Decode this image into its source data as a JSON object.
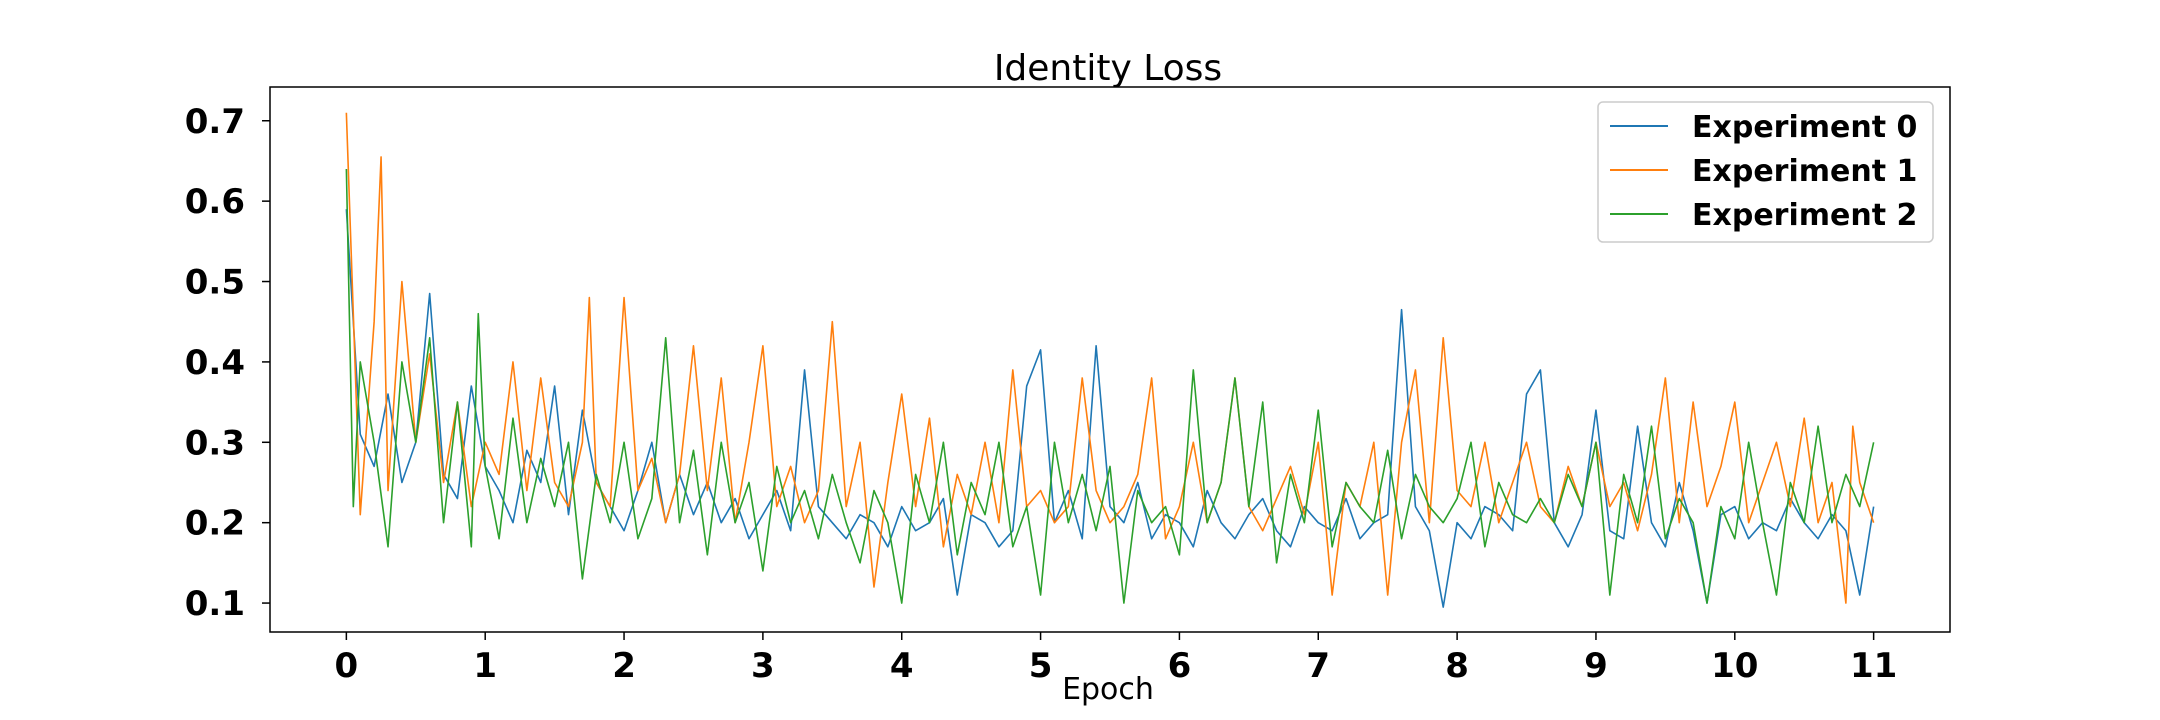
{
  "chart_data": {
    "type": "line",
    "title": "Identity Loss",
    "xlabel": "Epoch",
    "ylabel": "",
    "xlim": [
      -0.55,
      11.55
    ],
    "ylim": [
      0.064,
      0.742
    ],
    "xticks": [
      0,
      1,
      2,
      3,
      4,
      5,
      6,
      7,
      8,
      9,
      10,
      11
    ],
    "yticks": [
      0.1,
      0.2,
      0.3,
      0.4,
      0.5,
      0.6,
      0.7
    ],
    "xtick_labels": [
      "0",
      "1",
      "2",
      "3",
      "4",
      "5",
      "6",
      "7",
      "8",
      "9",
      "10",
      "11"
    ],
    "ytick_labels": [
      "0.1",
      "0.2",
      "0.3",
      "0.4",
      "0.5",
      "0.6",
      "0.7"
    ],
    "grid": false,
    "legend_position": "top-right",
    "series": [
      {
        "name": "Experiment 0",
        "color": "#1f77b4",
        "x": [
          0,
          0.1,
          0.2,
          0.3,
          0.4,
          0.5,
          0.6,
          0.7,
          0.8,
          0.9,
          1,
          1.1,
          1.2,
          1.3,
          1.4,
          1.5,
          1.6,
          1.7,
          1.8,
          1.9,
          2,
          2.1,
          2.2,
          2.3,
          2.4,
          2.5,
          2.6,
          2.7,
          2.8,
          2.9,
          3,
          3.1,
          3.2,
          3.3,
          3.4,
          3.5,
          3.6,
          3.7,
          3.8,
          3.9,
          4,
          4.1,
          4.2,
          4.3,
          4.4,
          4.5,
          4.6,
          4.7,
          4.8,
          4.9,
          5,
          5.1,
          5.2,
          5.3,
          5.4,
          5.5,
          5.6,
          5.7,
          5.8,
          5.9,
          6,
          6.1,
          6.2,
          6.3,
          6.4,
          6.5,
          6.6,
          6.7,
          6.8,
          6.9,
          7,
          7.1,
          7.2,
          7.3,
          7.4,
          7.5,
          7.6,
          7.7,
          7.8,
          7.9,
          8,
          8.1,
          8.2,
          8.3,
          8.4,
          8.5,
          8.6,
          8.7,
          8.8,
          8.9,
          9,
          9.1,
          9.2,
          9.3,
          9.4,
          9.5,
          9.6,
          9.7,
          9.8,
          9.9,
          10,
          10.1,
          10.2,
          10.3,
          10.4,
          10.5,
          10.6,
          10.7,
          10.8,
          10.9,
          11
        ],
        "values": [
          0.59,
          0.31,
          0.27,
          0.36,
          0.25,
          0.3,
          0.485,
          0.26,
          0.23,
          0.37,
          0.27,
          0.24,
          0.2,
          0.29,
          0.25,
          0.37,
          0.21,
          0.34,
          0.25,
          0.22,
          0.19,
          0.24,
          0.3,
          0.2,
          0.26,
          0.21,
          0.25,
          0.2,
          0.23,
          0.18,
          0.21,
          0.24,
          0.19,
          0.39,
          0.22,
          0.2,
          0.18,
          0.21,
          0.2,
          0.17,
          0.22,
          0.19,
          0.2,
          0.23,
          0.11,
          0.21,
          0.2,
          0.17,
          0.19,
          0.37,
          0.415,
          0.2,
          0.24,
          0.18,
          0.42,
          0.22,
          0.2,
          0.25,
          0.18,
          0.21,
          0.2,
          0.17,
          0.24,
          0.2,
          0.18,
          0.21,
          0.23,
          0.19,
          0.17,
          0.22,
          0.2,
          0.19,
          0.23,
          0.18,
          0.2,
          0.21,
          0.465,
          0.22,
          0.19,
          0.095,
          0.2,
          0.18,
          0.22,
          0.21,
          0.19,
          0.36,
          0.39,
          0.2,
          0.17,
          0.21,
          0.34,
          0.19,
          0.18,
          0.32,
          0.2,
          0.17,
          0.25,
          0.19,
          0.1,
          0.21,
          0.22,
          0.18,
          0.2,
          0.19,
          0.23,
          0.2,
          0.18,
          0.21,
          0.19,
          0.11,
          0.22
        ]
      },
      {
        "name": "Experiment 1",
        "color": "#ff7f0e",
        "x": [
          0,
          0.1,
          0.2,
          0.25,
          0.3,
          0.4,
          0.5,
          0.6,
          0.7,
          0.8,
          0.9,
          1,
          1.1,
          1.2,
          1.3,
          1.4,
          1.5,
          1.6,
          1.7,
          1.75,
          1.8,
          1.9,
          2,
          2.1,
          2.2,
          2.3,
          2.4,
          2.5,
          2.6,
          2.7,
          2.8,
          2.9,
          3,
          3.1,
          3.2,
          3.3,
          3.4,
          3.5,
          3.6,
          3.7,
          3.8,
          3.9,
          4,
          4.1,
          4.2,
          4.3,
          4.4,
          4.5,
          4.6,
          4.7,
          4.8,
          4.9,
          5,
          5.1,
          5.2,
          5.3,
          5.4,
          5.5,
          5.6,
          5.7,
          5.8,
          5.9,
          6,
          6.1,
          6.2,
          6.3,
          6.4,
          6.5,
          6.6,
          6.7,
          6.8,
          6.9,
          7,
          7.1,
          7.2,
          7.3,
          7.4,
          7.5,
          7.6,
          7.7,
          7.8,
          7.9,
          8,
          8.1,
          8.2,
          8.3,
          8.4,
          8.5,
          8.6,
          8.7,
          8.8,
          8.9,
          9,
          9.1,
          9.2,
          9.3,
          9.4,
          9.5,
          9.6,
          9.7,
          9.8,
          9.9,
          10,
          10.1,
          10.2,
          10.3,
          10.4,
          10.5,
          10.6,
          10.7,
          10.8,
          10.85,
          10.9,
          11
        ],
        "values": [
          0.71,
          0.21,
          0.45,
          0.655,
          0.24,
          0.5,
          0.3,
          0.41,
          0.25,
          0.35,
          0.22,
          0.3,
          0.26,
          0.4,
          0.24,
          0.38,
          0.25,
          0.22,
          0.3,
          0.48,
          0.25,
          0.22,
          0.48,
          0.24,
          0.28,
          0.2,
          0.26,
          0.42,
          0.24,
          0.38,
          0.2,
          0.3,
          0.42,
          0.22,
          0.27,
          0.2,
          0.24,
          0.45,
          0.22,
          0.3,
          0.12,
          0.25,
          0.36,
          0.22,
          0.33,
          0.17,
          0.26,
          0.21,
          0.3,
          0.2,
          0.39,
          0.22,
          0.24,
          0.2,
          0.22,
          0.38,
          0.24,
          0.2,
          0.22,
          0.26,
          0.38,
          0.18,
          0.22,
          0.3,
          0.2,
          0.25,
          0.38,
          0.22,
          0.19,
          0.23,
          0.27,
          0.21,
          0.3,
          0.11,
          0.25,
          0.22,
          0.3,
          0.11,
          0.3,
          0.39,
          0.2,
          0.43,
          0.24,
          0.22,
          0.3,
          0.2,
          0.25,
          0.3,
          0.22,
          0.2,
          0.27,
          0.22,
          0.3,
          0.22,
          0.25,
          0.19,
          0.26,
          0.38,
          0.2,
          0.35,
          0.22,
          0.27,
          0.35,
          0.2,
          0.25,
          0.3,
          0.22,
          0.33,
          0.2,
          0.25,
          0.1,
          0.32,
          0.25,
          0.2
        ]
      },
      {
        "name": "Experiment 2",
        "color": "#2ca02c",
        "x": [
          0,
          0.05,
          0.1,
          0.2,
          0.3,
          0.4,
          0.5,
          0.6,
          0.7,
          0.8,
          0.9,
          0.95,
          1,
          1.1,
          1.2,
          1.3,
          1.4,
          1.5,
          1.6,
          1.7,
          1.8,
          1.9,
          2,
          2.1,
          2.2,
          2.3,
          2.4,
          2.5,
          2.6,
          2.7,
          2.8,
          2.9,
          3,
          3.1,
          3.2,
          3.3,
          3.4,
          3.5,
          3.6,
          3.7,
          3.8,
          3.9,
          4,
          4.1,
          4.2,
          4.3,
          4.4,
          4.5,
          4.6,
          4.7,
          4.8,
          4.9,
          5,
          5.1,
          5.2,
          5.3,
          5.4,
          5.5,
          5.6,
          5.7,
          5.8,
          5.9,
          6,
          6.1,
          6.2,
          6.3,
          6.4,
          6.5,
          6.6,
          6.7,
          6.8,
          6.9,
          7,
          7.1,
          7.2,
          7.3,
          7.4,
          7.5,
          7.6,
          7.7,
          7.8,
          7.9,
          8,
          8.1,
          8.2,
          8.3,
          8.4,
          8.5,
          8.6,
          8.7,
          8.8,
          8.9,
          9,
          9.1,
          9.2,
          9.3,
          9.4,
          9.5,
          9.6,
          9.7,
          9.8,
          9.9,
          10,
          10.1,
          10.2,
          10.3,
          10.4,
          10.5,
          10.6,
          10.7,
          10.8,
          10.9,
          11
        ],
        "values": [
          0.64,
          0.22,
          0.4,
          0.3,
          0.17,
          0.4,
          0.3,
          0.43,
          0.2,
          0.35,
          0.17,
          0.46,
          0.27,
          0.18,
          0.33,
          0.2,
          0.28,
          0.22,
          0.3,
          0.13,
          0.26,
          0.2,
          0.3,
          0.18,
          0.23,
          0.43,
          0.2,
          0.29,
          0.16,
          0.3,
          0.2,
          0.25,
          0.14,
          0.27,
          0.2,
          0.24,
          0.18,
          0.26,
          0.2,
          0.15,
          0.24,
          0.2,
          0.1,
          0.26,
          0.2,
          0.3,
          0.16,
          0.25,
          0.21,
          0.3,
          0.17,
          0.22,
          0.11,
          0.3,
          0.2,
          0.26,
          0.19,
          0.27,
          0.1,
          0.24,
          0.2,
          0.22,
          0.16,
          0.39,
          0.2,
          0.25,
          0.38,
          0.22,
          0.35,
          0.15,
          0.26,
          0.2,
          0.34,
          0.17,
          0.25,
          0.22,
          0.2,
          0.29,
          0.18,
          0.26,
          0.22,
          0.2,
          0.23,
          0.3,
          0.17,
          0.25,
          0.21,
          0.2,
          0.23,
          0.2,
          0.26,
          0.22,
          0.3,
          0.11,
          0.26,
          0.2,
          0.32,
          0.18,
          0.23,
          0.2,
          0.1,
          0.22,
          0.18,
          0.3,
          0.2,
          0.11,
          0.25,
          0.2,
          0.32,
          0.2,
          0.26,
          0.22,
          0.3
        ]
      }
    ]
  }
}
